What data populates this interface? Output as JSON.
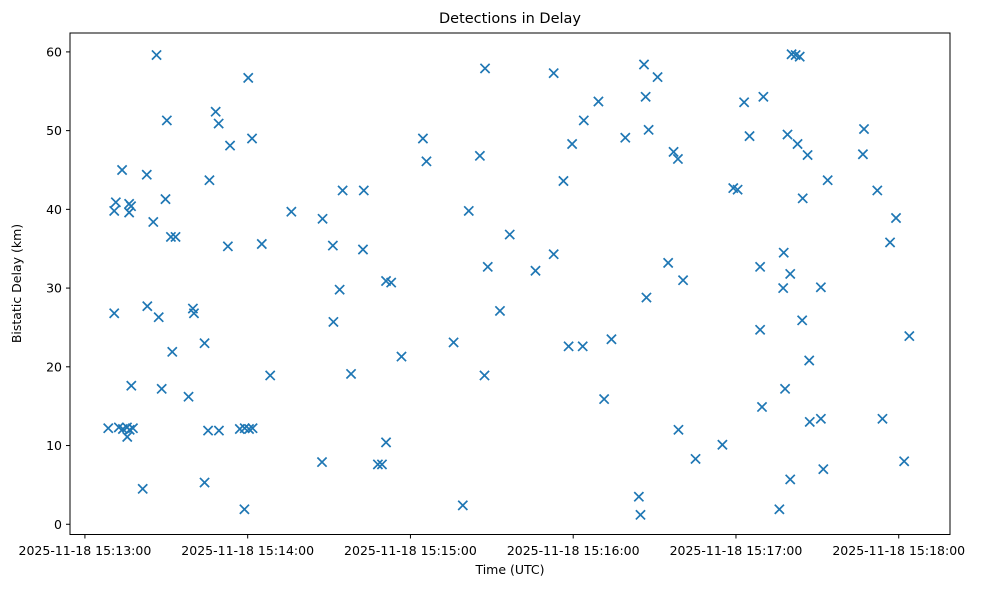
{
  "figure": {
    "title": "Detections in Delay"
  },
  "chart_data": {
    "type": "scatter",
    "title": "Detections in Delay",
    "xlabel": "Time (UTC)",
    "ylabel": "Bistatic Delay (km)",
    "legend": null,
    "grid": false,
    "marker": "x",
    "marker_color": "#1f77b4",
    "x_unit": "seconds after 2025-11-18 15:13:00 UTC",
    "xlim_seconds": [
      -5.5,
      318.9
    ],
    "ylim": [
      -1.3,
      62.4
    ],
    "x_ticks": [
      {
        "seconds": 0,
        "label": "2025-11-18 15:13:00"
      },
      {
        "seconds": 60,
        "label": "2025-11-18 15:14:00"
      },
      {
        "seconds": 120,
        "label": "2025-11-18 15:15:00"
      },
      {
        "seconds": 180,
        "label": "2025-11-18 15:16:00"
      },
      {
        "seconds": 240,
        "label": "2025-11-18 15:17:00"
      },
      {
        "seconds": 300,
        "label": "2025-11-18 15:18:00"
      }
    ],
    "y_ticks": [
      0,
      10,
      20,
      30,
      40,
      50,
      60
    ],
    "points": [
      [
        8.6,
        12.2
      ],
      [
        10.8,
        26.8
      ],
      [
        10.8,
        39.8
      ],
      [
        11.4,
        40.9
      ],
      [
        12.5,
        12.3
      ],
      [
        14.0,
        12.1
      ],
      [
        13.7,
        45.0
      ],
      [
        15.5,
        12.3
      ],
      [
        16.5,
        12.0
      ],
      [
        17.7,
        12.2
      ],
      [
        15.6,
        11.1
      ],
      [
        16.3,
        40.7
      ],
      [
        17.0,
        40.4
      ],
      [
        16.3,
        39.6
      ],
      [
        17.1,
        17.6
      ],
      [
        21.3,
        4.5
      ],
      [
        22.8,
        44.4
      ],
      [
        23.0,
        27.7
      ],
      [
        25.2,
        38.4
      ],
      [
        26.4,
        59.6
      ],
      [
        27.2,
        26.3
      ],
      [
        28.3,
        17.2
      ],
      [
        29.7,
        41.3
      ],
      [
        30.2,
        51.3
      ],
      [
        31.7,
        36.5
      ],
      [
        32.2,
        21.9
      ],
      [
        33.4,
        36.5
      ],
      [
        38.2,
        16.2
      ],
      [
        39.8,
        27.4
      ],
      [
        40.2,
        26.8
      ],
      [
        44.1,
        5.3
      ],
      [
        44.1,
        23.0
      ],
      [
        45.9,
        43.7
      ],
      [
        45.4,
        11.9
      ],
      [
        48.2,
        52.4
      ],
      [
        49.3,
        50.9
      ],
      [
        49.4,
        11.9
      ],
      [
        52.7,
        35.3
      ],
      [
        53.5,
        48.1
      ],
      [
        57.1,
        12.1
      ],
      [
        58.9,
        12.2
      ],
      [
        60.5,
        12.1
      ],
      [
        61.8,
        12.2
      ],
      [
        58.8,
        1.9
      ],
      [
        60.2,
        56.7
      ],
      [
        61.6,
        49.0
      ],
      [
        65.2,
        35.6
      ],
      [
        68.3,
        18.9
      ],
      [
        76.1,
        39.7
      ],
      [
        87.6,
        38.8
      ],
      [
        87.4,
        7.9
      ],
      [
        95.0,
        42.4
      ],
      [
        102.8,
        42.4
      ],
      [
        91.4,
        35.4
      ],
      [
        91.6,
        25.7
      ],
      [
        93.9,
        29.8
      ],
      [
        98.1,
        19.1
      ],
      [
        102.5,
        34.9
      ],
      [
        108.0,
        7.6
      ],
      [
        109.5,
        7.6
      ],
      [
        111.0,
        30.9
      ],
      [
        112.9,
        30.7
      ],
      [
        111.0,
        10.4
      ],
      [
        116.7,
        21.3
      ],
      [
        124.6,
        49.0
      ],
      [
        125.9,
        46.1
      ],
      [
        135.9,
        23.1
      ],
      [
        139.3,
        2.4
      ],
      [
        141.5,
        39.8
      ],
      [
        145.6,
        46.8
      ],
      [
        147.3,
        18.9
      ],
      [
        147.5,
        57.9
      ],
      [
        148.5,
        32.7
      ],
      [
        153.0,
        27.1
      ],
      [
        156.6,
        36.8
      ],
      [
        166.1,
        32.2
      ],
      [
        172.8,
        57.3
      ],
      [
        172.8,
        34.3
      ],
      [
        176.4,
        43.6
      ],
      [
        178.3,
        22.6
      ],
      [
        179.6,
        48.3
      ],
      [
        183.5,
        22.6
      ],
      [
        183.9,
        51.3
      ],
      [
        189.3,
        53.7
      ],
      [
        191.4,
        15.9
      ],
      [
        194.1,
        23.5
      ],
      [
        199.2,
        49.1
      ],
      [
        204.2,
        3.5
      ],
      [
        204.8,
        1.2
      ],
      [
        206.1,
        58.4
      ],
      [
        206.7,
        54.3
      ],
      [
        207.0,
        28.8
      ],
      [
        207.8,
        50.1
      ],
      [
        211.1,
        56.8
      ],
      [
        215.0,
        33.2
      ],
      [
        217.0,
        47.3
      ],
      [
        218.6,
        46.4
      ],
      [
        218.8,
        12.0
      ],
      [
        220.5,
        31.0
      ],
      [
        225.1,
        8.3
      ],
      [
        235.0,
        10.1
      ],
      [
        239.0,
        42.7
      ],
      [
        240.6,
        42.5
      ],
      [
        243.0,
        53.6
      ],
      [
        245.0,
        49.3
      ],
      [
        248.9,
        32.7
      ],
      [
        248.9,
        24.7
      ],
      [
        249.6,
        14.9
      ],
      [
        250.1,
        54.3
      ],
      [
        256.0,
        1.9
      ],
      [
        257.4,
        30.0
      ],
      [
        257.6,
        34.5
      ],
      [
        258.1,
        17.2
      ],
      [
        259.0,
        49.5
      ],
      [
        260.0,
        31.8
      ],
      [
        260.0,
        5.7
      ],
      [
        260.5,
        59.7
      ],
      [
        262.0,
        59.6
      ],
      [
        263.5,
        59.4
      ],
      [
        262.7,
        48.3
      ],
      [
        264.4,
        25.9
      ],
      [
        264.6,
        41.4
      ],
      [
        266.4,
        46.9
      ],
      [
        267.0,
        20.8
      ],
      [
        267.2,
        13.0
      ],
      [
        271.3,
        30.1
      ],
      [
        271.3,
        13.4
      ],
      [
        272.2,
        7.0
      ],
      [
        273.8,
        43.7
      ],
      [
        286.8,
        47.0
      ],
      [
        287.2,
        50.2
      ],
      [
        292.1,
        42.4
      ],
      [
        294.0,
        13.4
      ],
      [
        296.8,
        35.8
      ],
      [
        299.0,
        38.9
      ],
      [
        302.0,
        8.0
      ],
      [
        303.9,
        23.9
      ]
    ]
  }
}
